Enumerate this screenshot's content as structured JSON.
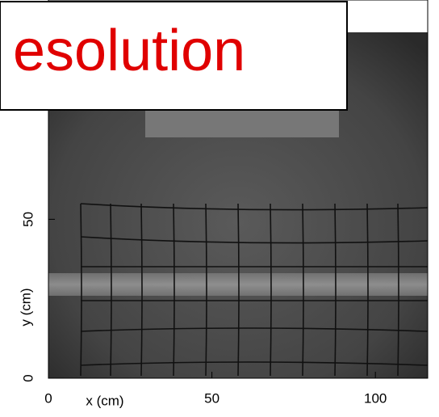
{
  "chart_data": {
    "type": "image",
    "annotation": "esolution",
    "xlabel": "x (cm)",
    "ylabel": "y (cm)",
    "xlim": [
      0,
      116
    ],
    "ylim": [
      0,
      119
    ],
    "xticks": [
      0,
      50,
      100
    ],
    "yticks": [
      0,
      50
    ]
  }
}
